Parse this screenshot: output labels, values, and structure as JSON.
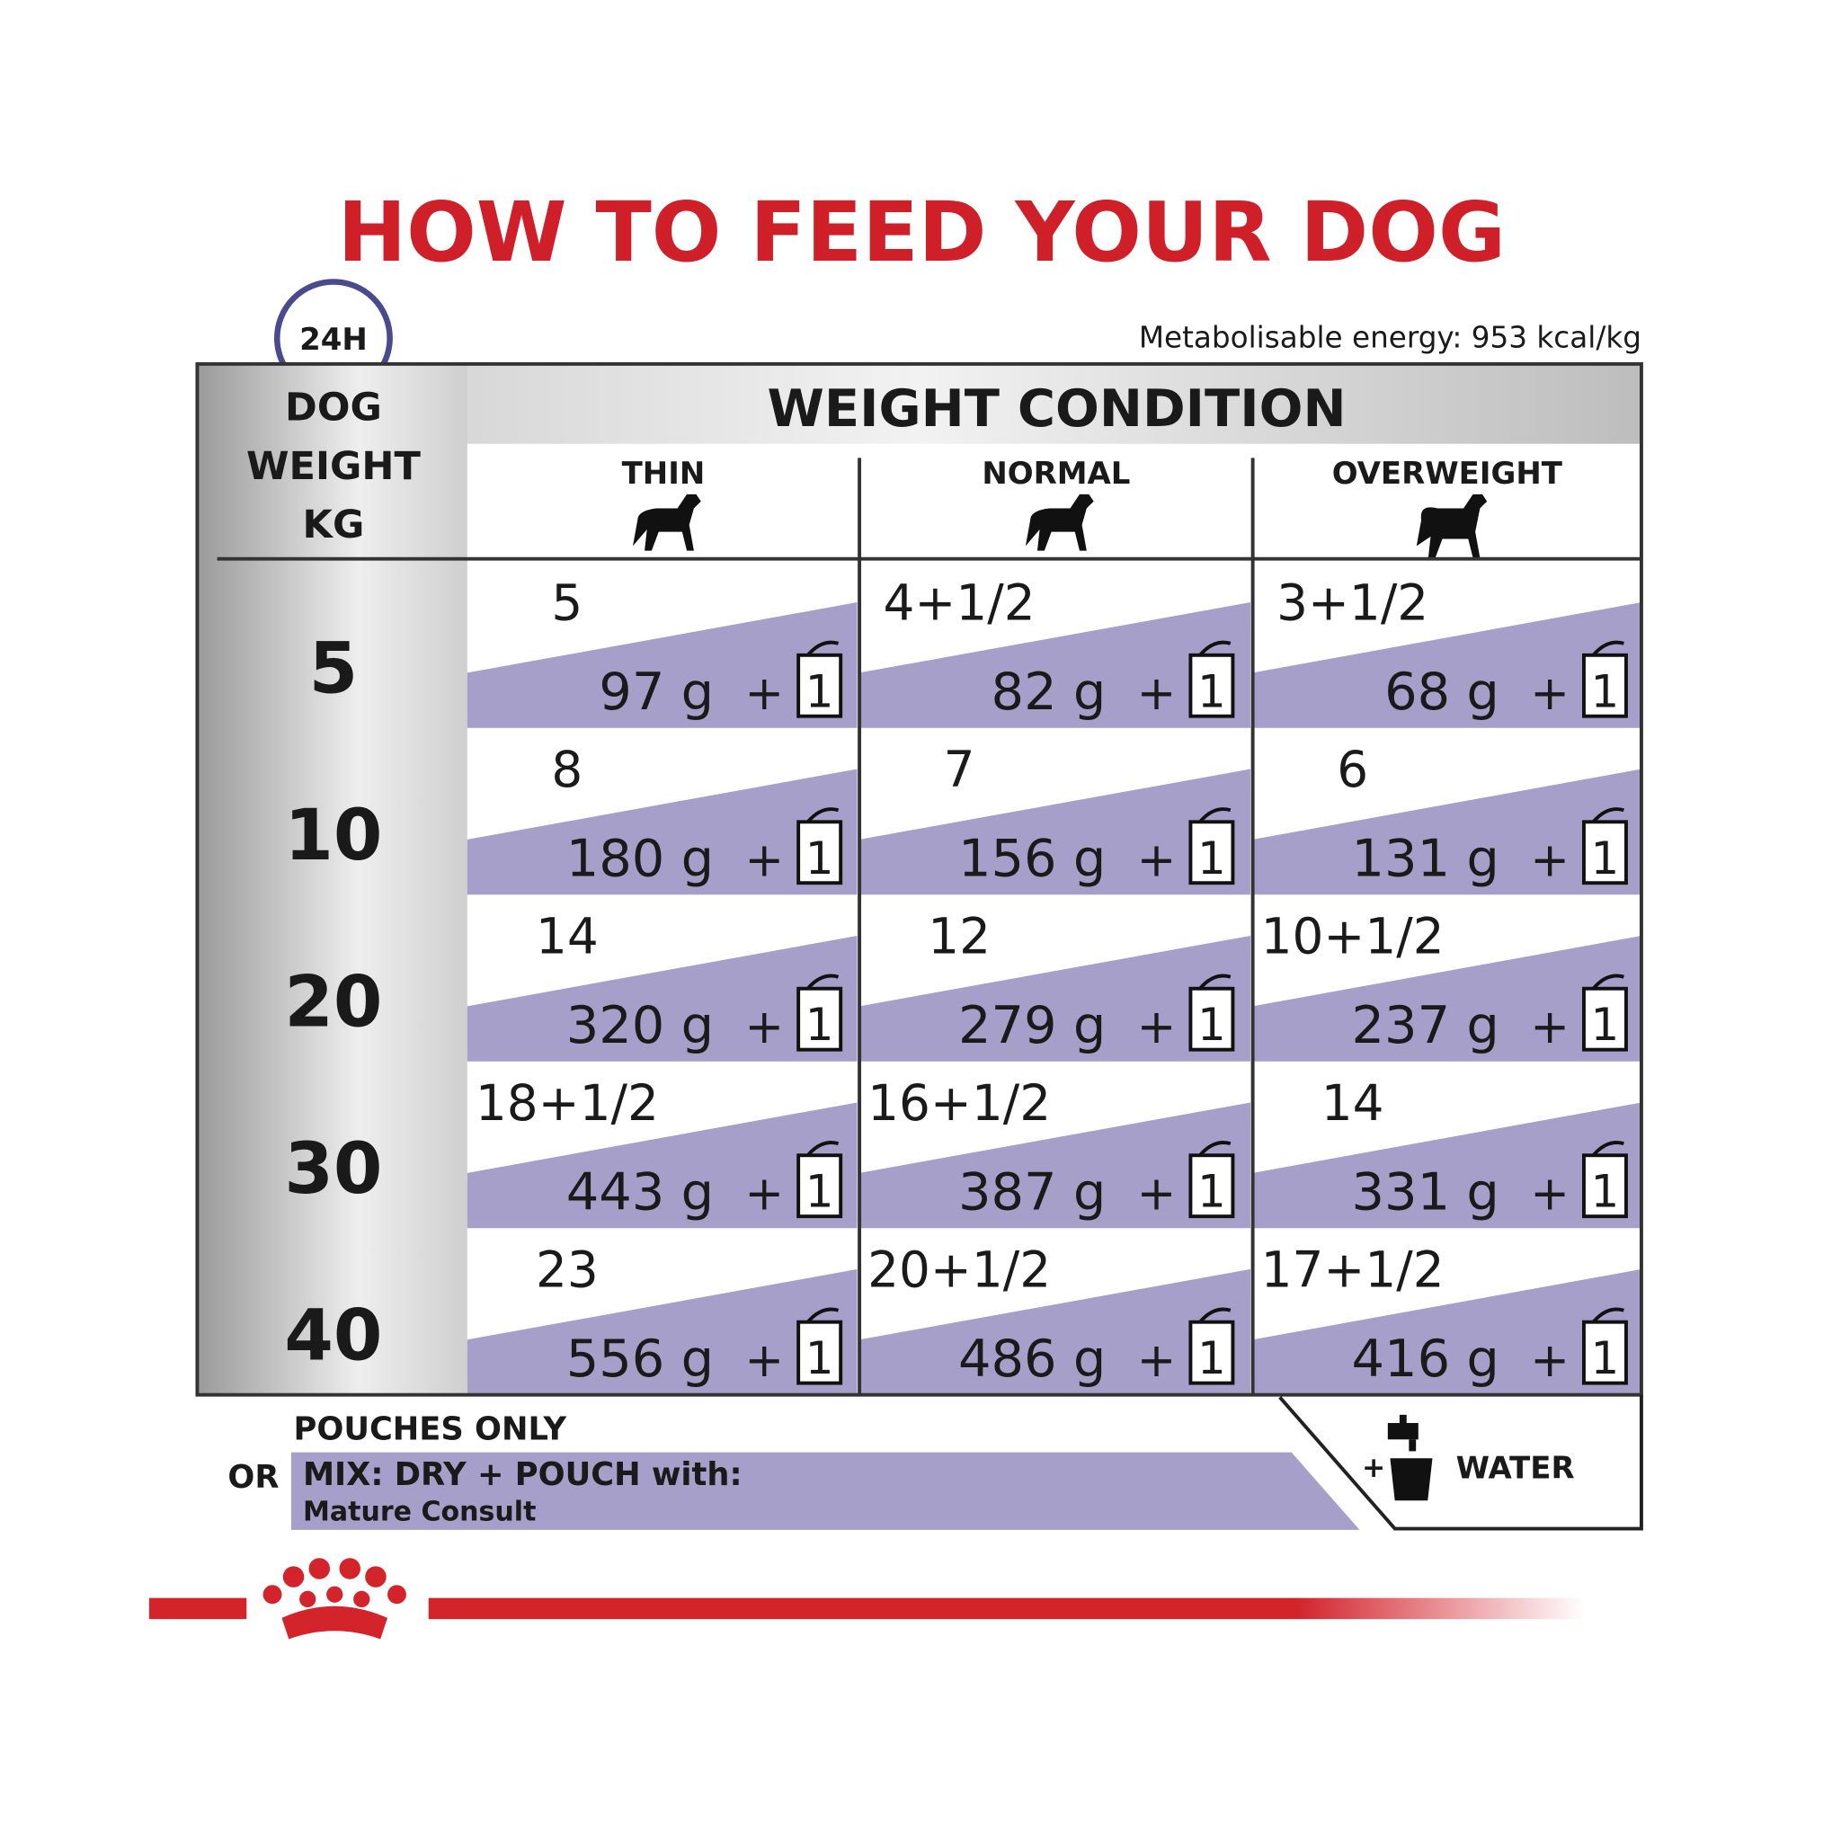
{
  "title": "HOW TO FEED YOUR DOG",
  "badge": "24H",
  "energy": "Metabolisable energy: 953 kcal/kg",
  "header": {
    "weight_label": [
      "DOG",
      "WEIGHT",
      "KG"
    ],
    "condition": "WEIGHT CONDITION",
    "columns": [
      "THIN",
      "NORMAL",
      "OVERWEIGHT"
    ]
  },
  "plus": "+",
  "pouch_count": "1",
  "rows": [
    {
      "weight": "5",
      "cells": [
        {
          "pouches": "5",
          "grams": "97 g"
        },
        {
          "pouches": "4+1/2",
          "grams": "82 g"
        },
        {
          "pouches": "3+1/2",
          "grams": "68 g"
        }
      ]
    },
    {
      "weight": "10",
      "cells": [
        {
          "pouches": "8",
          "grams": "180 g"
        },
        {
          "pouches": "7",
          "grams": "156 g"
        },
        {
          "pouches": "6",
          "grams": "131 g"
        }
      ]
    },
    {
      "weight": "20",
      "cells": [
        {
          "pouches": "14",
          "grams": "320 g"
        },
        {
          "pouches": "12",
          "grams": "279 g"
        },
        {
          "pouches": "10+1/2",
          "grams": "237 g"
        }
      ]
    },
    {
      "weight": "30",
      "cells": [
        {
          "pouches": "18+1/2",
          "grams": "443 g"
        },
        {
          "pouches": "16+1/2",
          "grams": "387 g"
        },
        {
          "pouches": "14",
          "grams": "331 g"
        }
      ]
    },
    {
      "weight": "40",
      "cells": [
        {
          "pouches": "23",
          "grams": "556 g"
        },
        {
          "pouches": "20+1/2",
          "grams": "486 g"
        },
        {
          "pouches": "17+1/2",
          "grams": "416 g"
        }
      ]
    }
  ],
  "footer": {
    "pouches_only": "POUCHES ONLY",
    "or": "OR",
    "mix": "MIX: DRY + POUCH with:",
    "product": "Mature Consult",
    "water_plus": "+",
    "water": "WATER"
  }
}
